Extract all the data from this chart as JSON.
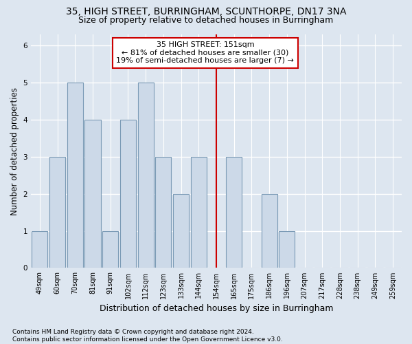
{
  "title": "35, HIGH STREET, BURRINGHAM, SCUNTHORPE, DN17 3NA",
  "subtitle": "Size of property relative to detached houses in Burringham",
  "xlabel": "Distribution of detached houses by size in Burringham",
  "ylabel": "Number of detached properties",
  "footnote": "Contains HM Land Registry data © Crown copyright and database right 2024.\nContains public sector information licensed under the Open Government Licence v3.0.",
  "categories": [
    "49sqm",
    "60sqm",
    "70sqm",
    "81sqm",
    "91sqm",
    "102sqm",
    "112sqm",
    "123sqm",
    "133sqm",
    "144sqm",
    "154sqm",
    "165sqm",
    "175sqm",
    "186sqm",
    "196sqm",
    "207sqm",
    "217sqm",
    "228sqm",
    "238sqm",
    "249sqm",
    "259sqm"
  ],
  "values": [
    1,
    3,
    5,
    4,
    1,
    4,
    5,
    3,
    2,
    3,
    0,
    3,
    0,
    2,
    1,
    0,
    0,
    0,
    0,
    0,
    0
  ],
  "bar_color": "#ccd9e8",
  "bar_edge_color": "#7a9ab5",
  "bar_edge_width": 0.8,
  "property_line_x": 10,
  "property_line_label": "35 HIGH STREET: 151sqm",
  "annotation_line1": "← 81% of detached houses are smaller (30)",
  "annotation_line2": "19% of semi-detached houses are larger (7) →",
  "annotation_box_color": "#ffffff",
  "annotation_box_edge_color": "#cc0000",
  "vline_color": "#cc0000",
  "ylim": [
    0,
    6.3
  ],
  "yticks": [
    0,
    1,
    2,
    3,
    4,
    5,
    6
  ],
  "bg_color": "#dde6f0",
  "plot_bg_color": "#dde6f0",
  "grid_color": "#ffffff",
  "title_fontsize": 10,
  "subtitle_fontsize": 9,
  "xlabel_fontsize": 9,
  "ylabel_fontsize": 8.5,
  "tick_fontsize": 7,
  "footnote_fontsize": 6.5,
  "annotation_fontsize": 8
}
